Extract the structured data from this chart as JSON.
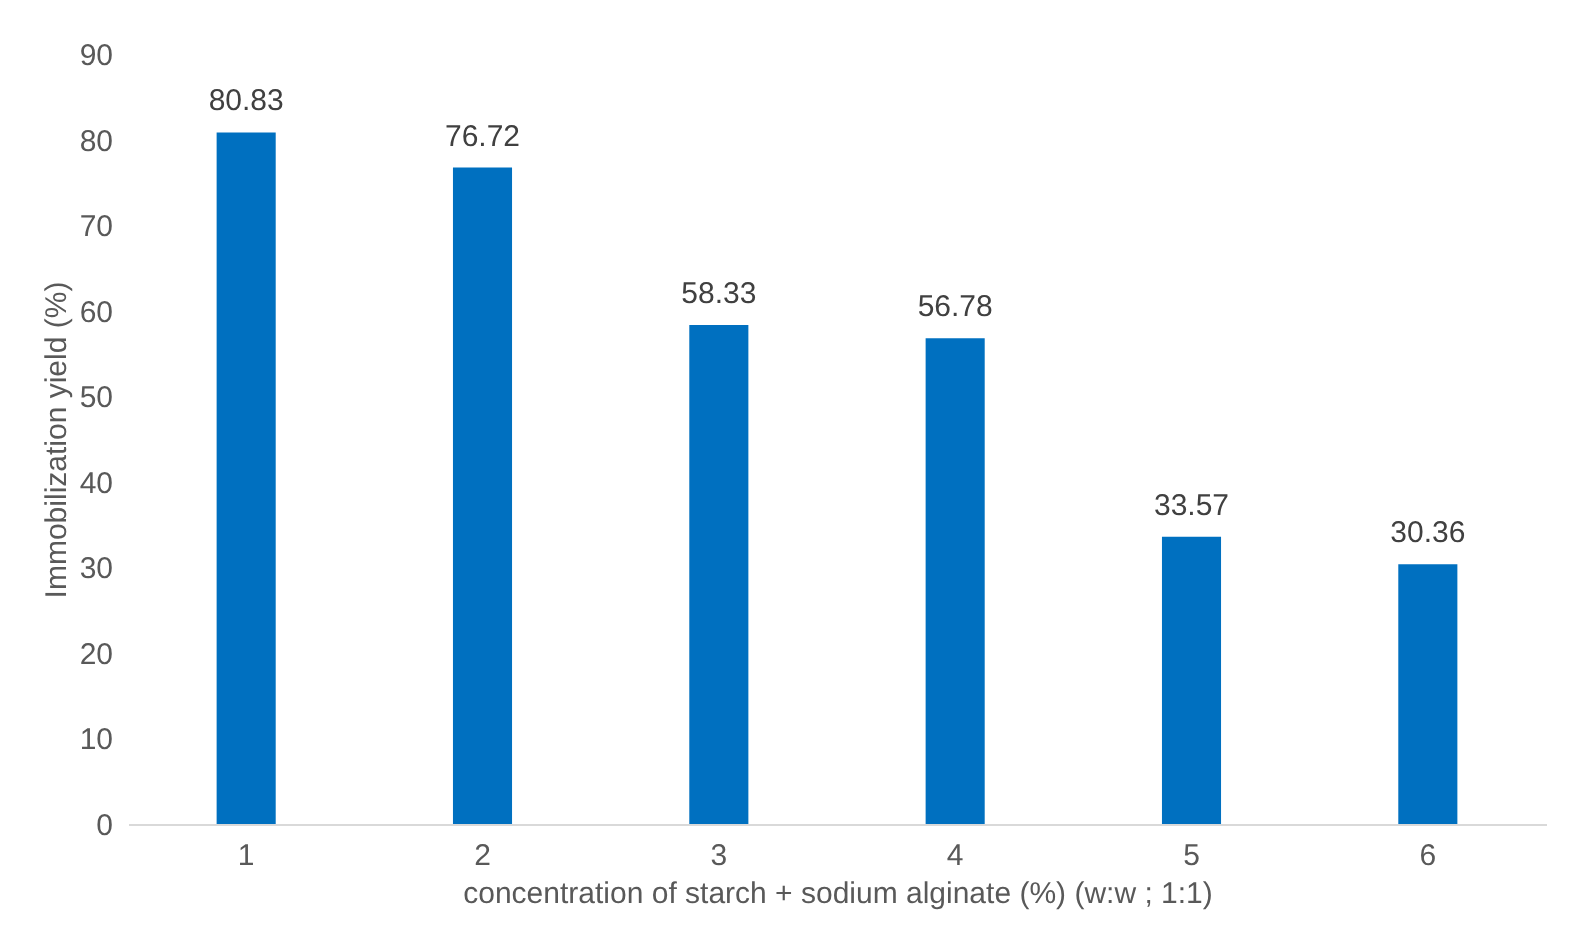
{
  "chart_data": {
    "type": "bar",
    "xlabel": "concentration of starch + sodium alginate  (%)  (w:w ; 1:1)",
    "ylabel": "Immobilization yield (%)",
    "categories": [
      "1",
      "2",
      "3",
      "4",
      "5",
      "6"
    ],
    "values": [
      80.83,
      76.72,
      58.33,
      56.78,
      33.57,
      30.36
    ],
    "color": "#0070c0",
    "ylim": [
      0,
      90
    ],
    "yticks": [
      0,
      10,
      20,
      30,
      40,
      50,
      60,
      70,
      80,
      90
    ],
    "grid": false,
    "data_labels": true
  }
}
